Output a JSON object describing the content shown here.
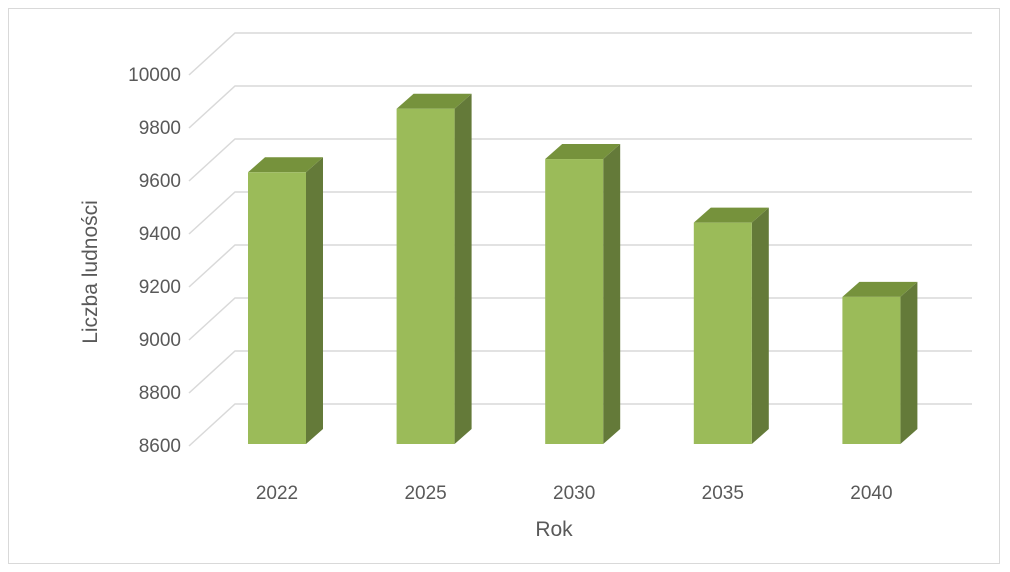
{
  "chart_data": {
    "type": "bar",
    "categories": [
      "2022",
      "2025",
      "2030",
      "2035",
      "2040"
    ],
    "values": [
      9580,
      9820,
      9630,
      9390,
      9110
    ],
    "xlabel": "Rok",
    "ylabel": "Liczba ludności",
    "ylim": [
      8600,
      10000
    ],
    "yticks": [
      "8600",
      "8800",
      "9000",
      "9200",
      "9400",
      "9600",
      "9800",
      "10000"
    ],
    "grid": true,
    "style": "3d-column",
    "colors": {
      "bar_front": "#9BBB59",
      "bar_side": "#647A39",
      "bar_top": "#76923C",
      "grid": "#d9d9d9",
      "text": "#595959"
    }
  }
}
